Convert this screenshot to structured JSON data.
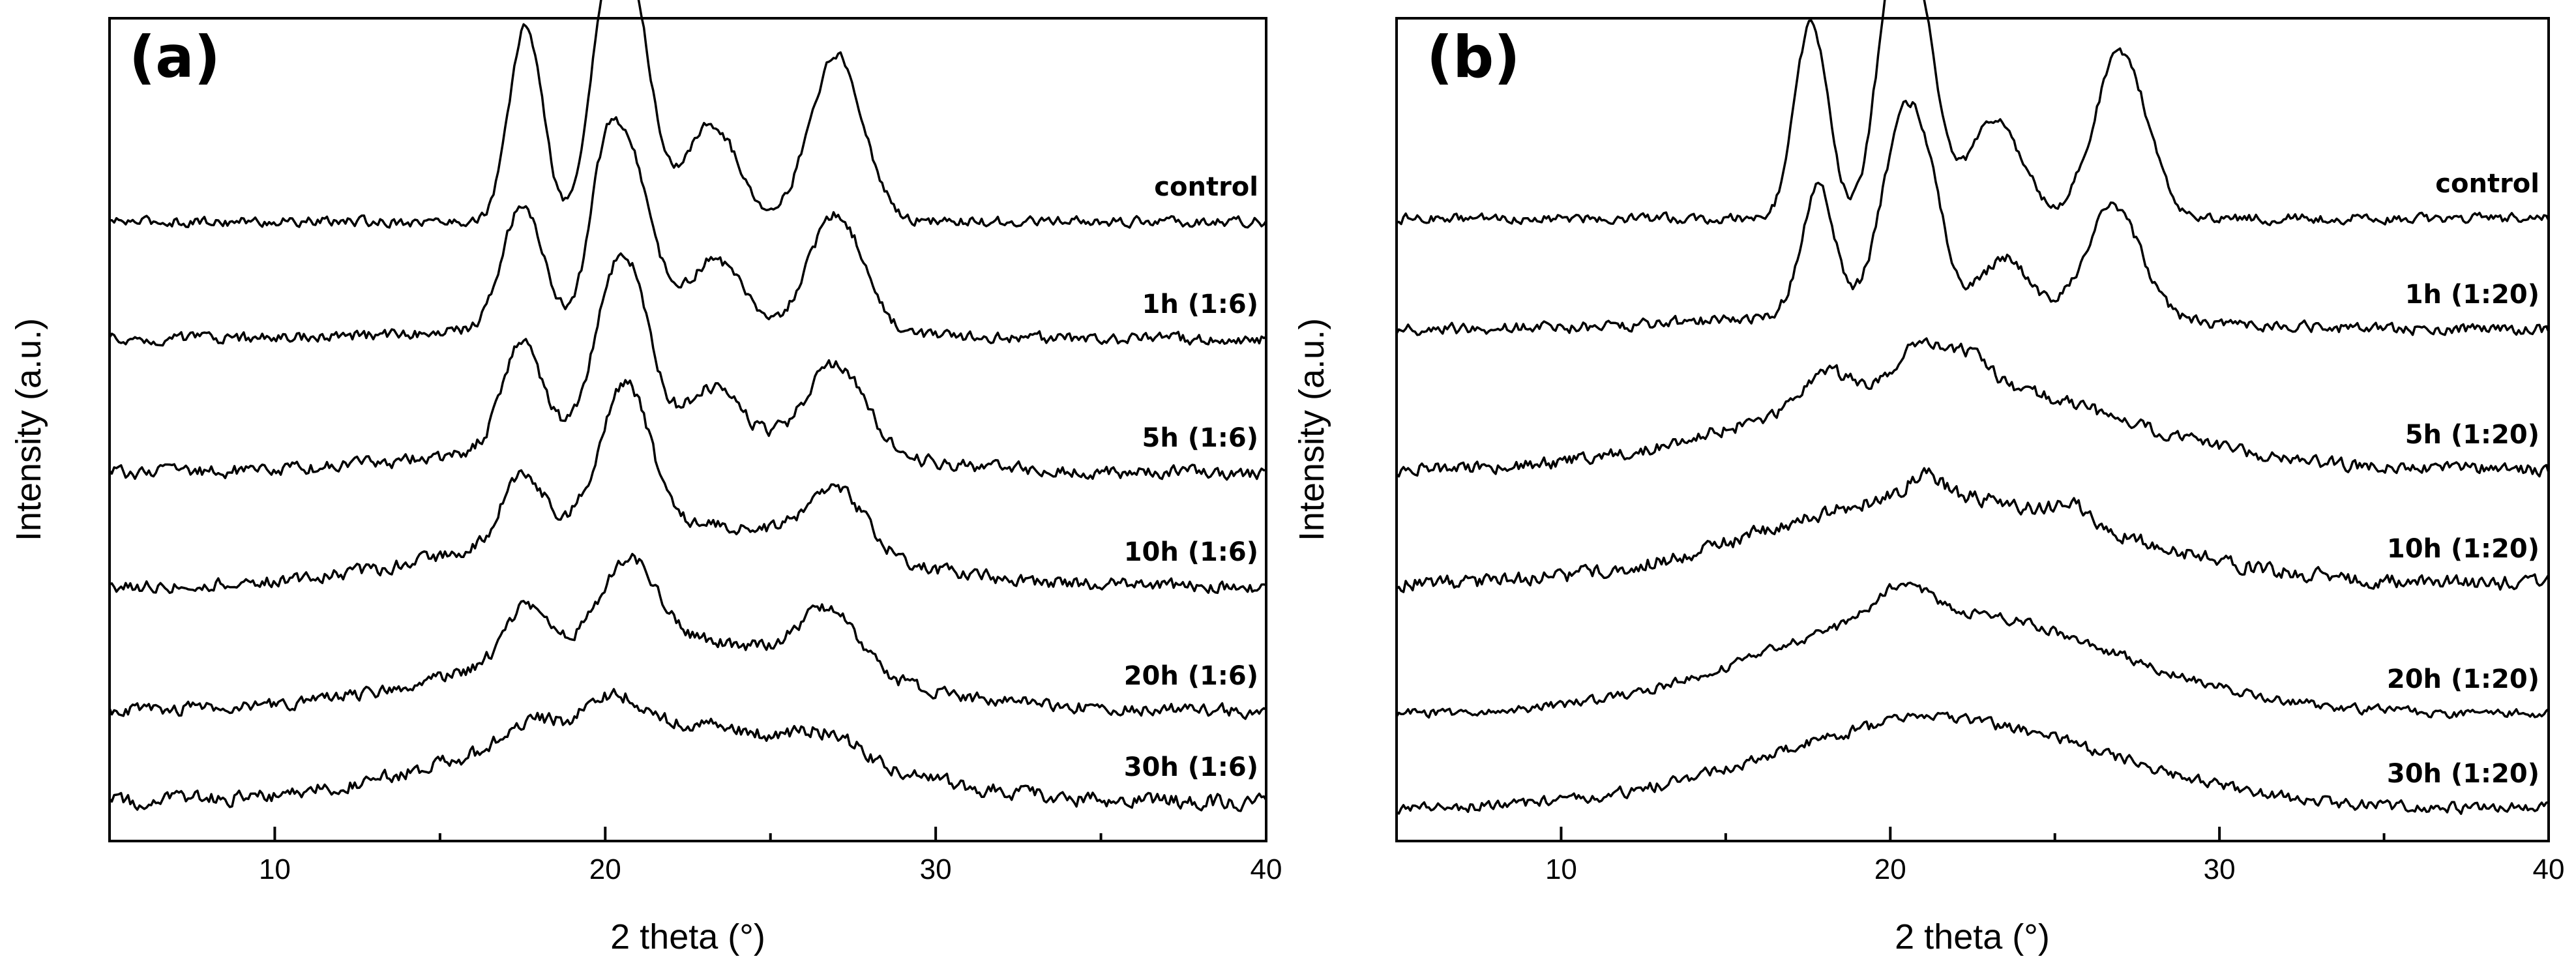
{
  "chart_data": [
    {
      "type": "line",
      "panel_label": "(a)",
      "xlabel": "2 theta (°)",
      "ylabel": "Intensity (a.u.)",
      "xlim": [
        5,
        40
      ],
      "xticks": [
        10,
        20,
        30,
        40
      ],
      "y_tick_labels": false,
      "series": [
        {
          "name": "control",
          "peaks": [
            [
              17.6,
              1.0,
              0.5
            ],
            [
              20.0,
              1.0,
              0.5
            ],
            [
              20.9,
              1.0,
              0.55
            ],
            [
              23.2,
              0.5,
              0.8
            ],
            [
              27.0,
              0.85,
              0.8
            ]
          ],
          "baseline": 0.0,
          "noise": 0.04,
          "hump": 0.0
        },
        {
          "name": "1h (1:6)",
          "peaks": [
            [
              17.5,
              0.85,
              0.6
            ],
            [
              20.0,
              1.0,
              0.5
            ],
            [
              20.9,
              0.95,
              0.6
            ],
            [
              23.3,
              0.45,
              0.8
            ],
            [
              27.0,
              0.8,
              0.8
            ]
          ],
          "baseline": 0.0,
          "noise": 0.06,
          "hump": 0.1
        },
        {
          "name": "5h (1:6)",
          "peaks": [
            [
              17.5,
              0.7,
              0.6
            ],
            [
              20.1,
              0.75,
              0.6
            ],
            [
              20.9,
              0.8,
              0.6
            ],
            [
              23.3,
              0.35,
              0.8
            ],
            [
              27.0,
              0.6,
              0.9
            ]
          ],
          "baseline": 0.0,
          "noise": 0.07,
          "hump": 0.25
        },
        {
          "name": "10h (1:6)",
          "peaks": [
            [
              17.5,
              0.45,
              0.6
            ],
            [
              20.3,
              0.55,
              0.7
            ],
            [
              20.9,
              0.5,
              0.6
            ],
            [
              27.0,
              0.4,
              0.9
            ]
          ],
          "baseline": 0.0,
          "noise": 0.07,
          "hump": 0.45
        },
        {
          "name": "20h (1:6)",
          "peaks": [
            [
              17.6,
              0.35,
              0.6
            ],
            [
              20.7,
              0.55,
              0.8
            ],
            [
              26.8,
              0.4,
              0.9
            ]
          ],
          "baseline": 0.0,
          "noise": 0.07,
          "hump": 0.5
        },
        {
          "name": "30h (1:6)",
          "peaks": [
            [
              17.6,
              0.15,
              0.7
            ],
            [
              20.2,
              0.2,
              0.8
            ],
            [
              26.8,
              0.15,
              0.9
            ]
          ],
          "baseline": 0.0,
          "noise": 0.08,
          "hump": 0.55
        }
      ]
    },
    {
      "type": "line",
      "panel_label": "(b)",
      "xlabel": "2 theta (°)",
      "ylabel": "Intensity (a.u.)",
      "xlim": [
        5,
        40
      ],
      "xticks": [
        10,
        20,
        30,
        40
      ],
      "y_tick_labels": false,
      "series": [
        {
          "name": "control",
          "peaks": [
            [
              17.6,
              1.0,
              0.5
            ],
            [
              20.0,
              1.0,
              0.5
            ],
            [
              20.9,
              1.0,
              0.55
            ],
            [
              23.2,
              0.5,
              0.8
            ],
            [
              27.0,
              0.85,
              0.8
            ]
          ],
          "baseline": 0.0,
          "noise": 0.04,
          "hump": 0.0
        },
        {
          "name": "1h (1:20)",
          "peaks": [
            [
              17.8,
              0.85,
              0.5
            ],
            [
              20.2,
              0.9,
              0.6
            ],
            [
              21.0,
              0.85,
              0.6
            ],
            [
              23.5,
              0.35,
              0.7
            ],
            [
              26.8,
              0.75,
              0.8
            ]
          ],
          "baseline": 0.0,
          "noise": 0.06,
          "hump": 0.15
        },
        {
          "name": "5h (1:20)",
          "peaks": [
            [
              18.0,
              0.2,
              0.6
            ],
            [
              21.0,
              0.25,
              0.8
            ],
            [
              22.5,
              0.15,
              0.6
            ]
          ],
          "baseline": 0.0,
          "noise": 0.07,
          "hump": 0.6
        },
        {
          "name": "10h (1:20)",
          "peaks": [
            [
              21.0,
              0.15,
              0.5
            ],
            [
              25.5,
              0.1,
              0.5
            ]
          ],
          "baseline": 0.0,
          "noise": 0.08,
          "hump": 0.6
        },
        {
          "name": "20h (1:20)",
          "peaks": [
            [
              20.0,
              0.15,
              0.6
            ],
            [
              20.9,
              0.1,
              0.6
            ]
          ],
          "baseline": 0.0,
          "noise": 0.05,
          "hump": 0.7
        },
        {
          "name": "30h (1:20)",
          "peaks": [
            [
              21.0,
              0.05,
              0.6
            ]
          ],
          "baseline": 0.0,
          "noise": 0.06,
          "hump": 0.6
        }
      ]
    }
  ]
}
